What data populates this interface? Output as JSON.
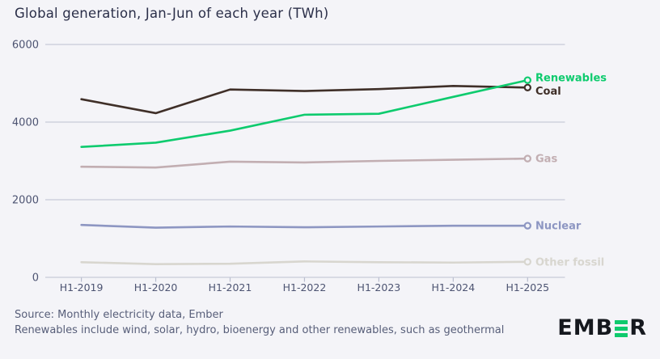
{
  "page_title": "Global generation, Jan-Jun of each year (TWh)",
  "colors": {
    "background": "#f4f4f8",
    "grid": "#c6c9d7",
    "tick": "#b9bdce",
    "axis_text": "#4d5472",
    "title_text": "#2b2f49",
    "footer_text": "#575e79",
    "logo_dark": "#15181e",
    "logo_green": "#0fca6d"
  },
  "chart_data": {
    "type": "line",
    "title": "Global generation, Jan-Jun of each year (TWh)",
    "categories": [
      "H1-2019",
      "H1-2020",
      "H1-2021",
      "H1-2022",
      "H1-2023",
      "H1-2024",
      "H1-2025"
    ],
    "series": [
      {
        "name": "Renewables",
        "color": "#0ecb6e",
        "values": [
          3360,
          3470,
          3780,
          4190,
          4215,
          4650,
          5080
        ]
      },
      {
        "name": "Coal",
        "color": "#3f2f28",
        "values": [
          4590,
          4230,
          4840,
          4800,
          4850,
          4930,
          4890
        ]
      },
      {
        "name": "Gas",
        "color": "#c2aeb2",
        "values": [
          2850,
          2830,
          2980,
          2960,
          3000,
          3030,
          3060
        ]
      },
      {
        "name": "Nuclear",
        "color": "#8d96c2",
        "values": [
          1350,
          1280,
          1310,
          1290,
          1310,
          1330,
          1330
        ]
      },
      {
        "name": "Other fossil",
        "color": "#d8d6cf",
        "values": [
          390,
          340,
          350,
          410,
          390,
          380,
          400
        ]
      }
    ],
    "ylabel": "",
    "xlabel": "",
    "ylim": [
      0,
      6000
    ],
    "yticks": [
      0,
      2000,
      4000,
      6000
    ],
    "grid": "horizontal",
    "legend_position": "end-of-line-labels",
    "units": "TWh"
  },
  "footer": {
    "line1": "Source: Monthly electricity data, Ember",
    "line2": "Renewables include wind, solar, hydro, bioenergy and other renewables, such as geothermal"
  },
  "logo": {
    "prefix": "EMB",
    "suffix": "R",
    "name": "EMBER"
  }
}
